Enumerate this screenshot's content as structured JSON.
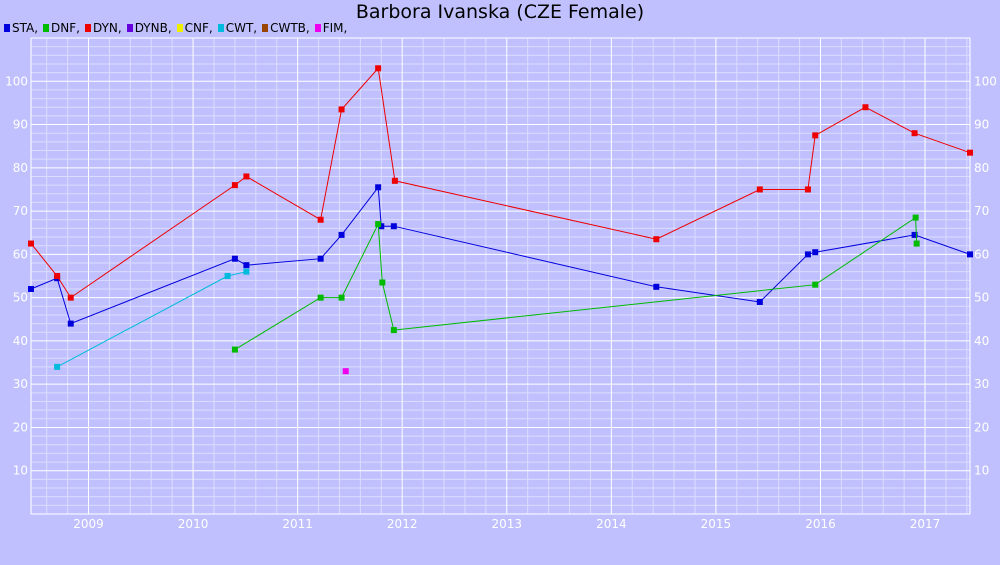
{
  "chart_data": {
    "type": "line",
    "title": "Barbora Ivanska (CZE Female)",
    "xlabel": "",
    "ylabel": "",
    "xlim": [
      2008.45,
      2017.43
    ],
    "ylim": [
      0,
      110
    ],
    "x_ticks": [
      "2009",
      "2010",
      "2011",
      "2012",
      "2013",
      "2014",
      "2015",
      "2016",
      "2017"
    ],
    "y_ticks": [
      "10",
      "20",
      "30",
      "40",
      "50",
      "60",
      "70",
      "80",
      "90",
      "100"
    ],
    "grid": true,
    "legend_position": "top-left",
    "legend": [
      {
        "label": "STA,",
        "color": "#0000dd"
      },
      {
        "label": "DNF,",
        "color": "#00bb00"
      },
      {
        "label": "DYN,",
        "color": "#ee0000"
      },
      {
        "label": "DYNB,",
        "color": "#6600dd"
      },
      {
        "label": "CNF,",
        "color": "#eeee00"
      },
      {
        "label": "CWT,",
        "color": "#00bbdd"
      },
      {
        "label": "CWTB,",
        "color": "#994400"
      },
      {
        "label": "FIM,",
        "color": "#ee00ee"
      }
    ],
    "series": [
      {
        "name": "STA",
        "color": "#0000dd",
        "points": [
          [
            2008.45,
            52.0
          ],
          [
            2008.7,
            54.5
          ],
          [
            2008.83,
            44.0
          ],
          [
            2010.4,
            59.0
          ],
          [
            2010.51,
            57.5
          ],
          [
            2011.22,
            59.0
          ],
          [
            2011.42,
            64.5
          ],
          [
            2011.77,
            75.5
          ],
          [
            2011.8,
            66.5
          ],
          [
            2011.92,
            66.5
          ],
          [
            2014.43,
            52.5
          ],
          [
            2015.42,
            49.0
          ],
          [
            2015.88,
            60.0
          ],
          [
            2015.95,
            60.5
          ],
          [
            2016.9,
            64.5
          ],
          [
            2017.43,
            60.0
          ]
        ]
      },
      {
        "name": "DNF",
        "color": "#00bb00",
        "points": [
          [
            2010.4,
            38.0
          ],
          [
            2011.22,
            50.0
          ],
          [
            2011.42,
            50.0
          ],
          [
            2011.77,
            67.0
          ],
          [
            2011.81,
            53.5
          ],
          [
            2011.92,
            42.5
          ],
          [
            2015.95,
            53.0
          ],
          [
            2016.91,
            68.5
          ],
          [
            2016.92,
            62.5
          ]
        ]
      },
      {
        "name": "DYN",
        "color": "#ee0000",
        "points": [
          [
            2008.45,
            62.5
          ],
          [
            2008.7,
            55.0
          ],
          [
            2008.83,
            50.0
          ],
          [
            2010.4,
            76.0
          ],
          [
            2010.51,
            78.0
          ],
          [
            2011.22,
            68.0
          ],
          [
            2011.42,
            93.5
          ],
          [
            2011.77,
            103.0
          ],
          [
            2011.93,
            77.0
          ],
          [
            2014.43,
            63.5
          ],
          [
            2015.42,
            75.0
          ],
          [
            2015.88,
            75.0
          ],
          [
            2015.95,
            87.5
          ],
          [
            2016.43,
            94.0
          ],
          [
            2016.9,
            88.0
          ],
          [
            2017.43,
            83.5
          ]
        ]
      },
      {
        "name": "CWT",
        "color": "#00bbdd",
        "points": [
          [
            2008.7,
            34.0
          ],
          [
            2010.33,
            55.0
          ],
          [
            2010.51,
            56.0
          ]
        ]
      },
      {
        "name": "FIM",
        "color": "#ee00ee",
        "points": [
          [
            2011.46,
            33.0
          ]
        ]
      }
    ]
  }
}
